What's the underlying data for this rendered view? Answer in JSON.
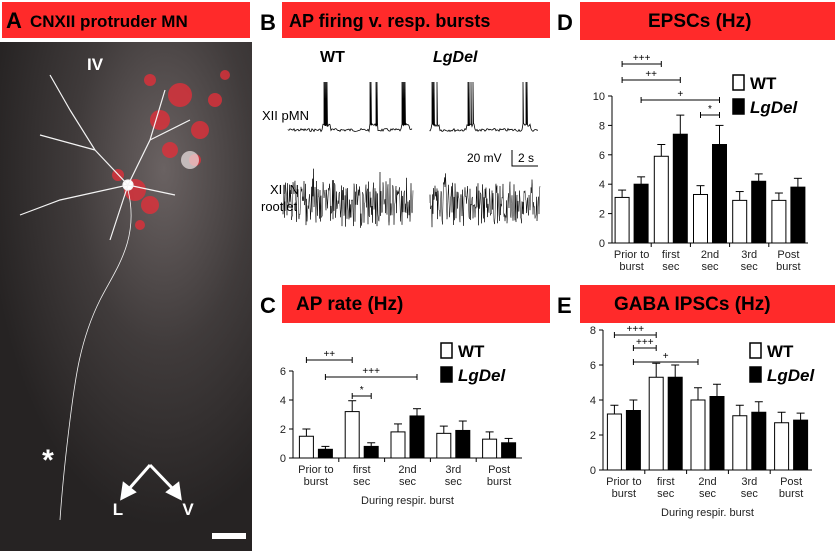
{
  "panel_a": {
    "letter": "A",
    "title": "CNXII protruder MN",
    "region": "IV",
    "marker": "*",
    "axis_left": "L",
    "axis_right": "V"
  },
  "panel_b": {
    "letter": "B",
    "title": "AP firing v. resp. bursts",
    "wt": "WT",
    "lgdel": "LgDel",
    "trace_top": "XII pMN",
    "scale_v": "20 mV",
    "scale_t": "2 s",
    "trace_bottom": [
      "XII N",
      "rootlet"
    ]
  },
  "chart_data": [
    {
      "type": "bar",
      "letter": "C",
      "title": "AP rate (Hz)",
      "xlabel": "During respir. burst",
      "categories": [
        [
          "Prior to",
          "burst"
        ],
        [
          "first",
          "sec"
        ],
        [
          "2nd",
          "sec"
        ],
        [
          "3rd",
          "sec"
        ],
        [
          "Post",
          "burst"
        ]
      ],
      "series": [
        {
          "name": "WT",
          "color": "#ffffff",
          "values": [
            1.5,
            3.2,
            1.8,
            1.7,
            1.3
          ],
          "errors": [
            0.5,
            0.75,
            0.55,
            0.5,
            0.5
          ]
        },
        {
          "name": "LgDel",
          "color": "#000000",
          "values": [
            0.6,
            0.8,
            2.9,
            1.9,
            1.05
          ],
          "errors": [
            0.2,
            0.25,
            0.5,
            0.65,
            0.3
          ]
        }
      ],
      "ylim": [
        0,
        6
      ],
      "yticks": [
        0,
        2,
        4,
        6
      ],
      "annotations": [
        "++",
        "+++",
        "*"
      ]
    },
    {
      "type": "bar",
      "letter": "D",
      "title": "EPSCs (Hz)",
      "categories": [
        [
          "Prior to",
          "burst"
        ],
        [
          "first",
          "sec"
        ],
        [
          "2nd",
          "sec"
        ],
        [
          "3rd",
          "sec"
        ],
        [
          "Post",
          "burst"
        ]
      ],
      "series": [
        {
          "name": "WT",
          "color": "#ffffff",
          "values": [
            3.1,
            5.9,
            3.3,
            2.9,
            2.9
          ],
          "errors": [
            0.5,
            0.8,
            0.6,
            0.6,
            0.5
          ]
        },
        {
          "name": "LgDel",
          "color": "#000000",
          "values": [
            4.0,
            7.4,
            6.7,
            4.2,
            3.8
          ],
          "errors": [
            0.5,
            1.3,
            1.3,
            0.5,
            0.6
          ]
        }
      ],
      "ylim": [
        0,
        10
      ],
      "yticks": [
        0,
        2,
        4,
        6,
        8,
        10
      ],
      "annotations": [
        "+++",
        "++",
        "+",
        "*"
      ]
    },
    {
      "type": "bar",
      "letter": "E",
      "title": "GABA IPSCs (Hz)",
      "xlabel": "During respir. burst",
      "categories": [
        [
          "Prior to",
          "burst"
        ],
        [
          "first",
          "sec"
        ],
        [
          "2nd",
          "sec"
        ],
        [
          "3rd",
          "sec"
        ],
        [
          "Post",
          "burst"
        ]
      ],
      "series": [
        {
          "name": "WT",
          "color": "#ffffff",
          "values": [
            3.2,
            5.3,
            4.0,
            3.1,
            2.7
          ],
          "errors": [
            0.5,
            0.8,
            0.7,
            0.6,
            0.6
          ]
        },
        {
          "name": "LgDel",
          "color": "#000000",
          "values": [
            3.4,
            5.3,
            4.2,
            3.3,
            2.85
          ],
          "errors": [
            0.6,
            0.7,
            0.7,
            0.6,
            0.4
          ]
        }
      ],
      "ylim": [
        0,
        8
      ],
      "yticks": [
        0,
        2,
        4,
        6,
        8
      ],
      "annotations": [
        "+++",
        "+++",
        "+"
      ]
    }
  ]
}
